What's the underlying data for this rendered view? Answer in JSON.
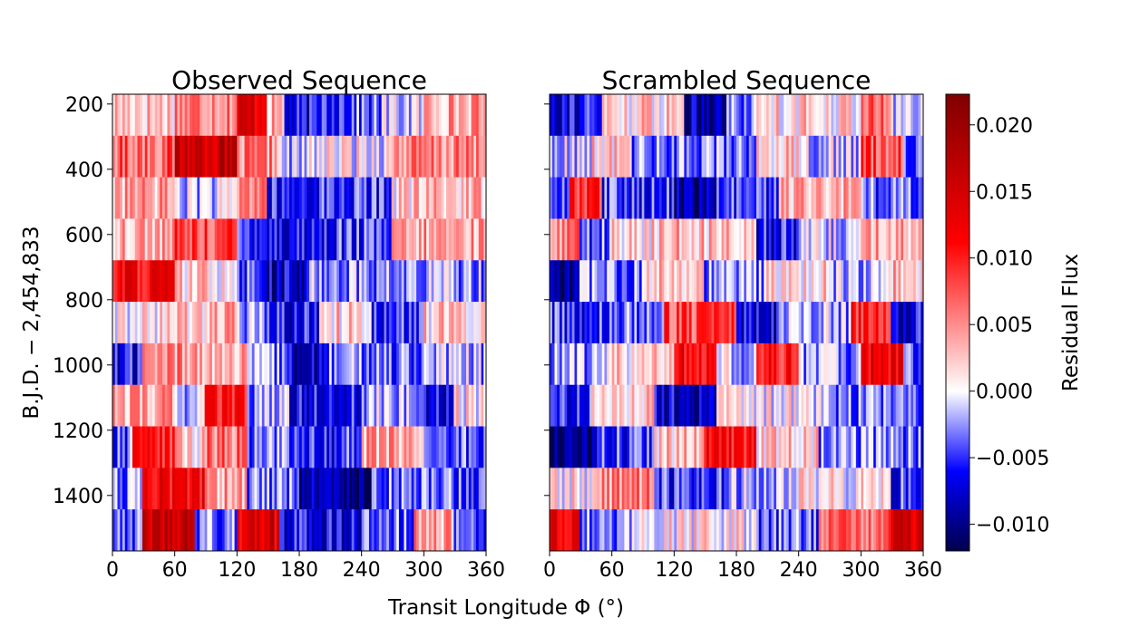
{
  "chart_data": [
    {
      "type": "heatmap",
      "title": "Observed Sequence",
      "xlabel": "Transit Longitude Φ (°)",
      "ylabel": "B.J.D. − 2,454,833",
      "xlim": [
        0,
        360
      ],
      "ylim": [
        1570,
        170
      ],
      "xticks": [
        "0",
        "60",
        "120",
        "180",
        "240",
        "300",
        "360"
      ],
      "yticks": [
        "200",
        "400",
        "600",
        "800",
        "1000",
        "1200",
        "1400"
      ],
      "row_bands_bjd": [
        [
          170,
          297
        ],
        [
          297,
          424
        ],
        [
          424,
          551
        ],
        [
          551,
          678
        ],
        [
          678,
          805
        ],
        [
          805,
          932
        ],
        [
          932,
          1060
        ],
        [
          1060,
          1187
        ],
        [
          1187,
          1314
        ],
        [
          1314,
          1441
        ],
        [
          1441,
          1570
        ]
      ],
      "band_profiles": [
        {
          "row": 0,
          "segments": [
            [
              0,
              60,
              0.003
            ],
            [
              60,
              120,
              0.006
            ],
            [
              120,
              150,
              0.014
            ],
            [
              150,
              165,
              0.003
            ],
            [
              165,
              200,
              -0.007
            ],
            [
              200,
              260,
              -0.004
            ],
            [
              260,
              300,
              -0.001
            ],
            [
              300,
              360,
              0.004
            ]
          ]
        },
        {
          "row": 1,
          "segments": [
            [
              0,
              60,
              0.007
            ],
            [
              60,
              120,
              0.016
            ],
            [
              120,
              160,
              0.005
            ],
            [
              160,
              190,
              -0.002
            ],
            [
              190,
              270,
              0.0005
            ],
            [
              270,
              360,
              0.005
            ]
          ]
        },
        {
          "row": 2,
          "segments": [
            [
              0,
              60,
              0.004
            ],
            [
              60,
              120,
              -0.001
            ],
            [
              120,
              150,
              0.006
            ],
            [
              150,
              190,
              -0.006
            ],
            [
              190,
              270,
              -0.005
            ],
            [
              270,
              300,
              0.002
            ],
            [
              300,
              360,
              0.003
            ]
          ]
        },
        {
          "row": 3,
          "segments": [
            [
              0,
              60,
              0.004
            ],
            [
              60,
              120,
              0.008
            ],
            [
              120,
              150,
              -0.004
            ],
            [
              150,
              210,
              -0.006
            ],
            [
              210,
              270,
              -0.005
            ],
            [
              270,
              300,
              0.003
            ],
            [
              300,
              360,
              0.004
            ]
          ]
        },
        {
          "row": 4,
          "segments": [
            [
              0,
              60,
              0.012
            ],
            [
              60,
              120,
              0.002
            ],
            [
              120,
              150,
              -0.004
            ],
            [
              150,
              190,
              -0.008
            ],
            [
              190,
              240,
              -0.002
            ],
            [
              240,
              300,
              -0.003
            ],
            [
              300,
              360,
              -0.002
            ]
          ]
        },
        {
          "row": 5,
          "segments": [
            [
              0,
              60,
              0.001
            ],
            [
              60,
              120,
              0.003
            ],
            [
              120,
              150,
              -0.002
            ],
            [
              150,
              200,
              -0.006
            ],
            [
              200,
              250,
              0.002
            ],
            [
              250,
              300,
              -0.005
            ],
            [
              300,
              360,
              0.002
            ]
          ]
        },
        {
          "row": 6,
          "segments": [
            [
              0,
              30,
              -0.006
            ],
            [
              30,
              90,
              0.005
            ],
            [
              90,
              130,
              0.003
            ],
            [
              130,
              170,
              -0.003
            ],
            [
              170,
              210,
              -0.008
            ],
            [
              210,
              300,
              -0.003
            ],
            [
              300,
              360,
              -0.002
            ]
          ]
        },
        {
          "row": 7,
          "segments": [
            [
              0,
              60,
              0.004
            ],
            [
              60,
              90,
              -0.001
            ],
            [
              90,
              130,
              0.01
            ],
            [
              130,
              170,
              -0.002
            ],
            [
              170,
              240,
              -0.006
            ],
            [
              240,
              300,
              -0.002
            ],
            [
              300,
              330,
              -0.006
            ],
            [
              330,
              360,
              0.001
            ]
          ]
        },
        {
          "row": 8,
          "segments": [
            [
              0,
              20,
              -0.004
            ],
            [
              20,
              60,
              0.01
            ],
            [
              60,
              90,
              0.002
            ],
            [
              90,
              130,
              0.006
            ],
            [
              130,
              180,
              -0.003
            ],
            [
              180,
              240,
              -0.005
            ],
            [
              240,
              300,
              0.004
            ],
            [
              300,
              360,
              -0.004
            ]
          ]
        },
        {
          "row": 9,
          "segments": [
            [
              0,
              30,
              -0.003
            ],
            [
              30,
              90,
              0.012
            ],
            [
              90,
              130,
              0.004
            ],
            [
              130,
              180,
              -0.003
            ],
            [
              180,
              250,
              -0.009
            ],
            [
              250,
              300,
              -0.003
            ],
            [
              300,
              360,
              -0.004
            ]
          ]
        },
        {
          "row": 10,
          "segments": [
            [
              0,
              30,
              -0.003
            ],
            [
              30,
              80,
              0.016
            ],
            [
              80,
              120,
              -0.003
            ],
            [
              120,
              160,
              0.014
            ],
            [
              160,
              240,
              -0.006
            ],
            [
              240,
              290,
              -0.004
            ],
            [
              290,
              330,
              0.004
            ],
            [
              330,
              360,
              -0.004
            ]
          ]
        }
      ]
    },
    {
      "type": "heatmap",
      "title": "Scrambled Sequence",
      "xlabel": "Transit Longitude Φ (°)",
      "xlim": [
        0,
        360
      ],
      "ylim": [
        1570,
        170
      ],
      "xticks": [
        "0",
        "60",
        "120",
        "180",
        "240",
        "300",
        "360"
      ],
      "band_profiles": [
        {
          "row": 0,
          "segments": [
            [
              0,
              50,
              -0.006
            ],
            [
              50,
              130,
              0.002
            ],
            [
              130,
              170,
              -0.008
            ],
            [
              170,
              200,
              -0.003
            ],
            [
              200,
              300,
              0.002
            ],
            [
              300,
              330,
              0.006
            ],
            [
              330,
              360,
              -0.001
            ]
          ]
        },
        {
          "row": 1,
          "segments": [
            [
              0,
              40,
              -0.001
            ],
            [
              40,
              80,
              0.002
            ],
            [
              80,
              200,
              -0.003
            ],
            [
              200,
              240,
              0.002
            ],
            [
              240,
              300,
              -0.001
            ],
            [
              300,
              340,
              0.008
            ],
            [
              340,
              360,
              -0.005
            ]
          ]
        },
        {
          "row": 2,
          "segments": [
            [
              0,
              20,
              -0.003
            ],
            [
              20,
              50,
              0.009
            ],
            [
              50,
              120,
              -0.005
            ],
            [
              120,
              160,
              -0.009
            ],
            [
              160,
              220,
              -0.005
            ],
            [
              220,
              300,
              0.003
            ],
            [
              300,
              360,
              -0.004
            ]
          ]
        },
        {
          "row": 3,
          "segments": [
            [
              0,
              30,
              0.006
            ],
            [
              30,
              60,
              -0.004
            ],
            [
              60,
              120,
              0.002
            ],
            [
              120,
              200,
              0.003
            ],
            [
              200,
              240,
              -0.006
            ],
            [
              240,
              300,
              -0.001
            ],
            [
              300,
              360,
              0.004
            ]
          ]
        },
        {
          "row": 4,
          "segments": [
            [
              0,
              30,
              -0.01
            ],
            [
              30,
              90,
              -0.003
            ],
            [
              90,
              150,
              0.003
            ],
            [
              150,
              210,
              -0.003
            ],
            [
              210,
              270,
              0.002
            ],
            [
              270,
              330,
              -0.002
            ],
            [
              330,
              360,
              0.003
            ]
          ]
        },
        {
          "row": 5,
          "segments": [
            [
              0,
              60,
              -0.005
            ],
            [
              60,
              110,
              -0.003
            ],
            [
              110,
              180,
              0.008
            ],
            [
              180,
              220,
              -0.007
            ],
            [
              220,
              290,
              -0.002
            ],
            [
              290,
              330,
              0.01
            ],
            [
              330,
              360,
              -0.007
            ]
          ]
        },
        {
          "row": 6,
          "segments": [
            [
              0,
              60,
              -0.002
            ],
            [
              60,
              120,
              0.002
            ],
            [
              120,
              160,
              0.012
            ],
            [
              160,
              200,
              -0.001
            ],
            [
              200,
              240,
              0.01
            ],
            [
              240,
              300,
              -0.002
            ],
            [
              300,
              340,
              0.012
            ],
            [
              340,
              360,
              -0.004
            ]
          ]
        },
        {
          "row": 7,
          "segments": [
            [
              0,
              40,
              -0.005
            ],
            [
              40,
              100,
              0.002
            ],
            [
              100,
              160,
              -0.007
            ],
            [
              160,
              270,
              0.0003
            ],
            [
              270,
              360,
              -0.003
            ]
          ]
        },
        {
          "row": 8,
          "segments": [
            [
              0,
              40,
              -0.011
            ],
            [
              40,
              100,
              -0.005
            ],
            [
              100,
              150,
              0.003
            ],
            [
              150,
              200,
              0.011
            ],
            [
              200,
              260,
              0.002
            ],
            [
              260,
              360,
              -0.003
            ]
          ]
        },
        {
          "row": 9,
          "segments": [
            [
              0,
              40,
              0.001
            ],
            [
              40,
              100,
              0.005
            ],
            [
              100,
              170,
              -0.005
            ],
            [
              170,
              240,
              -0.002
            ],
            [
              240,
              330,
              0.001
            ],
            [
              330,
              360,
              -0.005
            ]
          ]
        },
        {
          "row": 10,
          "segments": [
            [
              0,
              30,
              0.012
            ],
            [
              30,
              80,
              -0.003
            ],
            [
              80,
              200,
              0.001
            ],
            [
              200,
              260,
              -0.004
            ],
            [
              260,
              330,
              0.007
            ],
            [
              330,
              360,
              0.014
            ]
          ]
        }
      ]
    }
  ],
  "colorbar": {
    "label": "Residual Flux",
    "min": -0.012,
    "max": 0.0223,
    "ticks": [
      "0.020",
      "0.015",
      "0.010",
      "0.005",
      "0.000",
      "−0.005",
      "−0.010"
    ],
    "tick_values": [
      0.02,
      0.015,
      0.01,
      0.005,
      0.0,
      -0.005,
      -0.01
    ],
    "colormap": "seismic"
  }
}
